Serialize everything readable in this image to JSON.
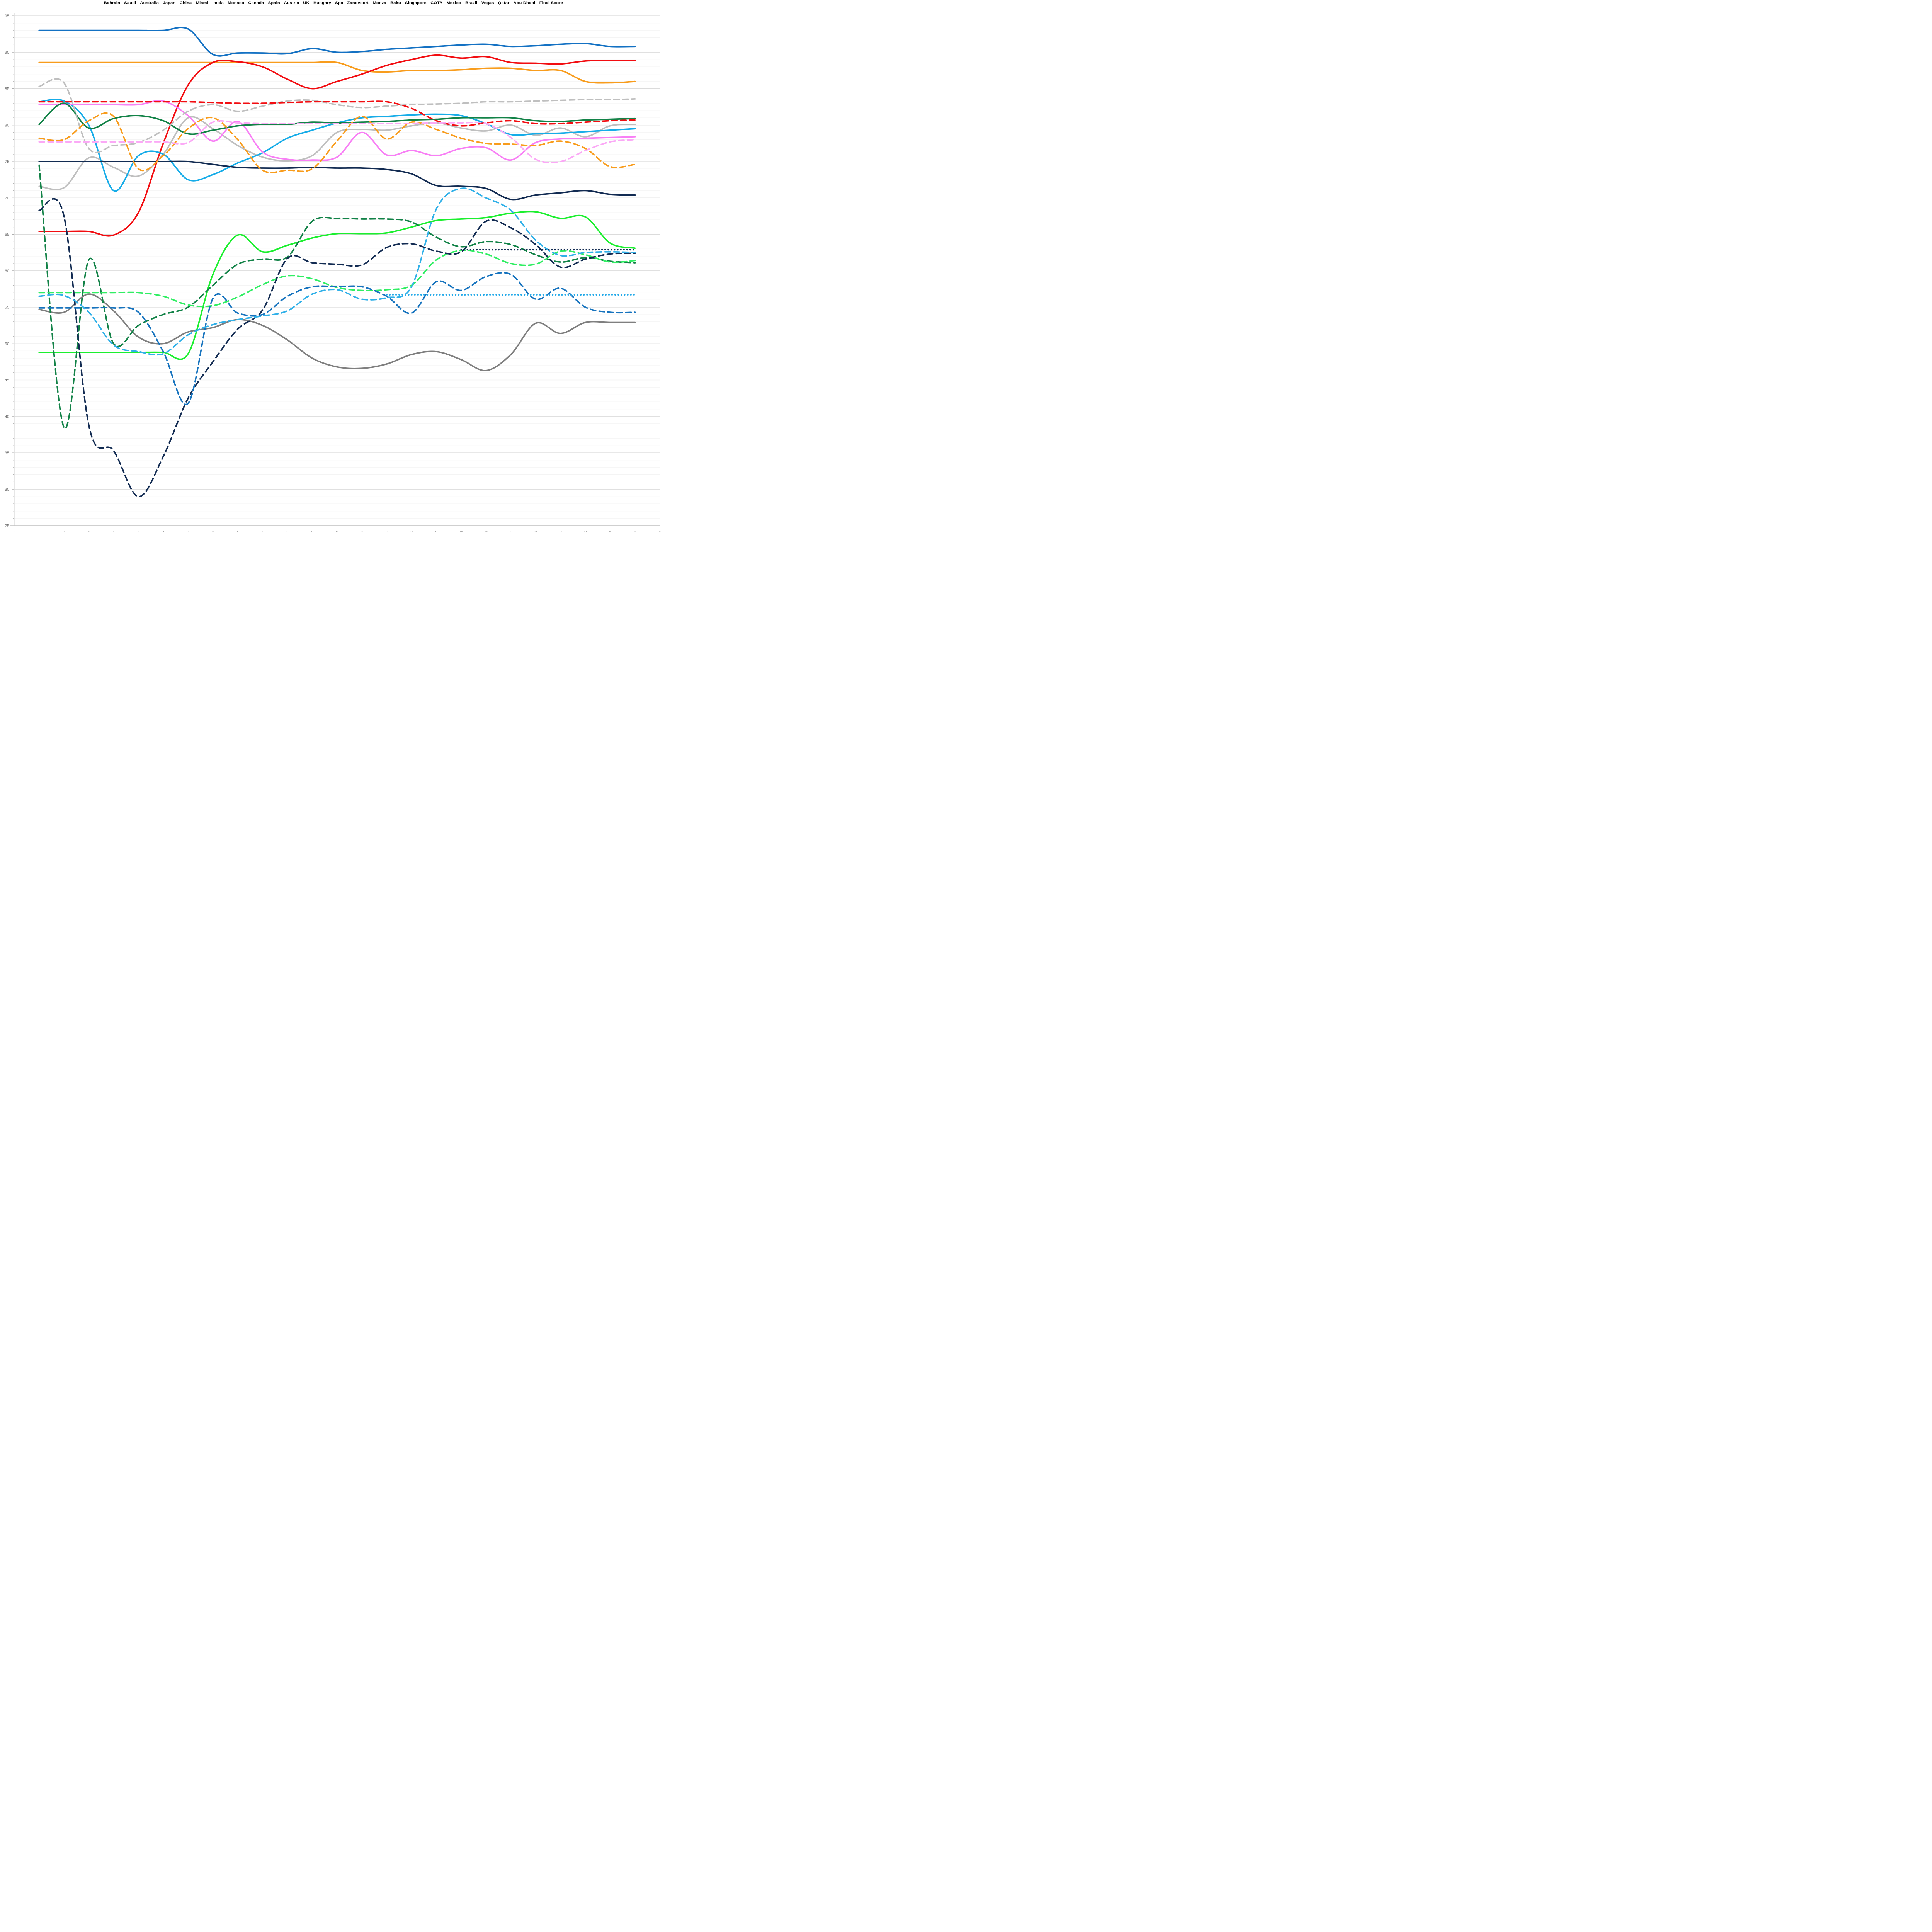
{
  "title": "Bahrain - Saudi - Australia -  Japan  -  China  -  Miami  -  Imola  - Monaco - Canada - Spain -   Austria    -  UK  -  Hungary  - Spa - Zandvoort - Monza - Baku - Singapore - COTA - Mexico - Brazil -  Vegas  - Qatar - Abu Dhabi - Final Score",
  "chart_data": {
    "type": "line",
    "title": "Bahrain - Saudi - Australia - Japan - China - Miami - Imola - Monaco - Canada - Spain - Austria - UK - Hungary - Spa - Zandvoort - Monza - Baku - Singapore - COTA - Mexico - Brazil - Vegas - Qatar - Abu Dhabi - Final Score",
    "races": [
      "Bahrain",
      "Saudi",
      "Australia",
      "Japan",
      "China",
      "Miami",
      "Imola",
      "Monaco",
      "Canada",
      "Spain",
      "Austria",
      "UK",
      "Hungary",
      "Spa",
      "Zandvoort",
      "Monza",
      "Baku",
      "Singapore",
      "COTA",
      "Mexico",
      "Brazil",
      "Vegas",
      "Qatar",
      "Abu Dhabi",
      "Final Score"
    ],
    "x": [
      1,
      2,
      3,
      4,
      5,
      6,
      7,
      8,
      9,
      10,
      11,
      12,
      13,
      14,
      15,
      16,
      17,
      18,
      19,
      20,
      21,
      22,
      23,
      24,
      25
    ],
    "xlabel": "",
    "ylabel": "",
    "xlim": [
      0,
      26
    ],
    "ylim": [
      25,
      95
    ],
    "x_ticks": [
      0,
      1,
      2,
      3,
      4,
      5,
      6,
      7,
      8,
      9,
      10,
      11,
      12,
      13,
      14,
      15,
      16,
      17,
      18,
      19,
      20,
      21,
      22,
      23,
      24,
      25,
      26
    ],
    "y_major_ticks": [
      25,
      30,
      35,
      40,
      45,
      50,
      55,
      60,
      65,
      70,
      75,
      80,
      85,
      90,
      95
    ],
    "y_minor_step": 1,
    "grid": true,
    "legend": "none",
    "colors": {
      "blue": "#1371C3",
      "orange": "#F89C1C",
      "red": "#F20D11",
      "gray_light": "#BFBFBF",
      "gray_dark": "#7F7F7F",
      "navy": "#122B52",
      "cyan": "#16ACE8",
      "cyan_dash": "#30B0E8",
      "blue_dash": "#1673BE",
      "blue_dot": "#25AAE9",
      "pink": "#F87FF5",
      "pink_dash": "#FBA9F6",
      "green_dark": "#128247",
      "green_bright": "#1BEF2E",
      "green_bright_dash": "#30EE63"
    },
    "series": [
      {
        "name": "blue-solid",
        "color": "#1371C3",
        "style": "solid",
        "values": [
          93,
          93,
          93,
          93,
          93,
          93,
          93.2,
          89.7,
          89.9,
          89.9,
          89.8,
          90.5,
          90,
          90.1,
          90.4,
          90.6,
          90.8,
          91,
          91.1,
          90.8,
          90.9,
          91.1,
          91.2,
          90.8,
          90.8
        ]
      },
      {
        "name": "orange-solid",
        "color": "#F89C1C",
        "style": "solid",
        "values": [
          88.6,
          88.6,
          88.6,
          88.6,
          88.6,
          88.6,
          88.6,
          88.6,
          88.6,
          88.6,
          88.6,
          88.6,
          88.6,
          87.5,
          87.3,
          87.5,
          87.5,
          87.6,
          87.8,
          87.8,
          87.5,
          87.5,
          86,
          85.8,
          86
        ]
      },
      {
        "name": "red-solid",
        "color": "#F20D11",
        "style": "solid",
        "values": [
          65.4,
          65.4,
          65.4,
          64.9,
          68,
          77.5,
          85.5,
          88.6,
          88.7,
          88,
          86.3,
          85,
          86,
          87,
          88.2,
          89,
          89.6,
          89.2,
          89.4,
          88.6,
          88.5,
          88.4,
          88.8,
          88.9,
          88.9
        ]
      },
      {
        "name": "gray-light-solid",
        "color": "#BFBFBF",
        "style": "solid",
        "values": [
          71.6,
          71.4,
          75.5,
          74.2,
          73,
          76,
          81,
          79.5,
          77.2,
          75.6,
          75.1,
          75.8,
          79,
          79.4,
          79.3,
          79.9,
          80.3,
          79.6,
          79.2,
          80,
          78.6,
          79.6,
          78.4,
          79.9,
          80.1
        ]
      },
      {
        "name": "cyan-solid",
        "color": "#16ACE8",
        "style": "solid",
        "values": [
          83.2,
          83.3,
          80,
          71,
          75.8,
          76,
          72.5,
          73.2,
          74.8,
          76.2,
          78.2,
          79.3,
          80.3,
          81,
          81.2,
          81.4,
          81.5,
          81.3,
          80.2,
          78.7,
          78.8,
          78.9,
          79.1,
          79.3,
          79.5
        ]
      },
      {
        "name": "pink-solid",
        "color": "#F87FF5",
        "style": "solid",
        "values": [
          82.8,
          82.8,
          82.8,
          82.8,
          82.8,
          83.3,
          81.3,
          77.8,
          80.5,
          76.3,
          75.3,
          75.2,
          75.6,
          79,
          75.9,
          76.5,
          75.8,
          76.8,
          76.9,
          75.2,
          77.6,
          78.1,
          78.2,
          78.3,
          78.4
        ]
      },
      {
        "name": "green-dark-solid",
        "color": "#128247",
        "style": "solid",
        "values": [
          80.1,
          83,
          79.6,
          80.9,
          81.3,
          80.6,
          78.8,
          79.3,
          79.9,
          80.1,
          80.1,
          80.4,
          80.3,
          80.4,
          80.5,
          80.7,
          80.8,
          81,
          81,
          81,
          80.6,
          80.5,
          80.7,
          80.8,
          80.9
        ]
      },
      {
        "name": "navy-solid",
        "color": "#122B52",
        "style": "solid",
        "values": [
          75,
          75,
          75,
          75,
          75,
          75,
          75,
          74.6,
          74.2,
          74.1,
          74.1,
          74.2,
          74.1,
          74.1,
          73.9,
          73.3,
          71.7,
          71.6,
          71.3,
          69.8,
          70.4,
          70.7,
          71,
          70.5,
          70.4
        ]
      },
      {
        "name": "gray-dark-solid",
        "color": "#7F7F7F",
        "style": "solid",
        "values": [
          54.7,
          54.3,
          56.8,
          54.5,
          50.9,
          50,
          51.6,
          52.2,
          53.3,
          52.5,
          50.5,
          48,
          46.8,
          46.6,
          47.2,
          48.5,
          48.9,
          47.8,
          46.3,
          48.5,
          52.8,
          51.4,
          52.9,
          52.9,
          52.9
        ]
      },
      {
        "name": "green-bright-solid",
        "color": "#1BEF2E",
        "style": "solid",
        "values": [
          48.8,
          48.8,
          48.8,
          48.8,
          48.8,
          48.8,
          48.6,
          59.5,
          64.9,
          62.6,
          63.5,
          64.5,
          65.1,
          65.1,
          65.2,
          66,
          66.9,
          67.1,
          67.3,
          67.9,
          68.1,
          67.2,
          67.4,
          63.8,
          63.1
        ]
      },
      {
        "name": "gray-light-dashed",
        "color": "#BFBFBF",
        "style": "dashed",
        "values": [
          85.3,
          85.8,
          76.8,
          77.2,
          77.6,
          79.3,
          81.9,
          82.8,
          81.9,
          82.6,
          83.3,
          83.4,
          82.8,
          82.4,
          82.6,
          82.8,
          82.9,
          83,
          83.2,
          83.2,
          83.3,
          83.4,
          83.5,
          83.5,
          83.6
        ]
      },
      {
        "name": "red-dashed",
        "color": "#F20D11",
        "style": "dashed",
        "values": [
          83.2,
          83.2,
          83.2,
          83.2,
          83.2,
          83.2,
          83.2,
          83.1,
          83,
          83,
          83.1,
          83.2,
          83.2,
          83.2,
          83.2,
          82.3,
          80.6,
          79.9,
          80.3,
          80.6,
          80.2,
          80.2,
          80.4,
          80.6,
          80.7
        ]
      },
      {
        "name": "orange-dashed",
        "color": "#F89C1C",
        "style": "dashed",
        "values": [
          78.2,
          78,
          80.6,
          81.2,
          74,
          75.8,
          79.5,
          81,
          78,
          73.8,
          73.8,
          74,
          77.8,
          81.2,
          78.1,
          80.4,
          79.4,
          78.2,
          77.5,
          77.4,
          77.2,
          77.8,
          76.8,
          74.3,
          74.6
        ]
      },
      {
        "name": "pink-dashed",
        "color": "#FBA9F6",
        "style": "dashed",
        "values": [
          77.7,
          77.7,
          77.7,
          77.7,
          77.7,
          77.7,
          77.6,
          80.4,
          80.3,
          80.2,
          80.2,
          80.2,
          80.2,
          80.2,
          80.2,
          80.2,
          80.3,
          80.3,
          80.2,
          78.3,
          75.3,
          75,
          76.5,
          77.7,
          78
        ]
      },
      {
        "name": "green-dark-dashed",
        "color": "#128247",
        "style": "dashed",
        "values": [
          74.5,
          38.5,
          61.5,
          50,
          52.5,
          54,
          55,
          58,
          60.9,
          61.6,
          61.9,
          66.8,
          67.2,
          67.1,
          67.1,
          66.7,
          64.6,
          63.3,
          64,
          63.6,
          62.2,
          61.2,
          61.8,
          61.3,
          61.1
        ]
      },
      {
        "name": "green-bright-dashed",
        "color": "#30EE63",
        "style": "dashed",
        "values": [
          57,
          57,
          57,
          57,
          57,
          56.5,
          55.3,
          55.2,
          56.4,
          58.1,
          59.3,
          58.9,
          57.7,
          57.3,
          57.4,
          58,
          61.5,
          62.8,
          62.3,
          61,
          60.9,
          62.7,
          62.2,
          61.2,
          61.4
        ]
      },
      {
        "name": "navy-dashed",
        "color": "#122B52",
        "style": "dashed",
        "values": [
          68.3,
          67.5,
          38.8,
          35.3,
          29,
          34.5,
          42.5,
          47.5,
          52,
          54.6,
          61.7,
          61.1,
          60.9,
          60.8,
          63.2,
          63.7,
          62.7,
          62.6,
          66.8,
          65.9,
          63.6,
          60.5,
          61.6,
          62.3,
          62.4
        ]
      },
      {
        "name": "blue-dashed",
        "color": "#1673BE",
        "style": "dashed",
        "values": [
          54.9,
          54.9,
          54.9,
          54.9,
          54.3,
          48.9,
          41.8,
          56.2,
          54.2,
          54,
          56.5,
          57.8,
          57.8,
          57.8,
          56.5,
          54.2,
          58.5,
          57.3,
          59.2,
          59.5,
          56.1,
          57.6,
          55,
          54.3,
          54.3
        ]
      },
      {
        "name": "cyan-dashed",
        "color": "#30B0E8",
        "style": "dashed",
        "values": [
          56.5,
          56.6,
          54.3,
          49.8,
          48.9,
          48.6,
          51.2,
          52.6,
          53.3,
          53.8,
          54.5,
          56.8,
          57.4,
          56.1,
          56.3,
          57.8,
          68.5,
          71.3,
          70,
          68.3,
          64.2,
          62.1,
          62.5,
          62.6,
          62.5
        ]
      },
      {
        "name": "blue-dotted",
        "color": "#25AAE9",
        "style": "dotted",
        "values": [
          null,
          null,
          null,
          null,
          null,
          null,
          null,
          null,
          null,
          null,
          null,
          null,
          null,
          null,
          56.7,
          56.7,
          56.7,
          56.7,
          56.7,
          56.7,
          56.7,
          56.7,
          56.7,
          56.7,
          56.7
        ]
      },
      {
        "name": "navy-dotted",
        "color": "#122B52",
        "style": "dotted",
        "values": [
          null,
          null,
          null,
          null,
          null,
          null,
          null,
          null,
          null,
          null,
          null,
          null,
          null,
          null,
          null,
          null,
          null,
          62.9,
          62.9,
          62.9,
          62.9,
          62.9,
          62.9,
          62.9,
          62.9
        ]
      }
    ]
  },
  "axes": {
    "y_labels": [
      "95",
      "90",
      "85",
      "80",
      "75",
      "70",
      "65",
      "60",
      "55",
      "50",
      "45",
      "40",
      "35",
      "30",
      "25"
    ],
    "x_labels": [
      "0",
      "1",
      "2",
      "3",
      "4",
      "5",
      "6",
      "7",
      "8",
      "9",
      "10",
      "11",
      "12",
      "13",
      "14",
      "15",
      "16",
      "17",
      "18",
      "19",
      "20",
      "21",
      "22",
      "23",
      "24",
      "25",
      "26"
    ]
  },
  "style": {
    "grid_minor_color": "#F3F3F3",
    "grid_major_color": "#DBDBDB",
    "axis_line_color": "#BFBFBF",
    "tick_color": "#ADADAD",
    "label_color": "#6E6E6E",
    "background": "#FFFFFF"
  }
}
